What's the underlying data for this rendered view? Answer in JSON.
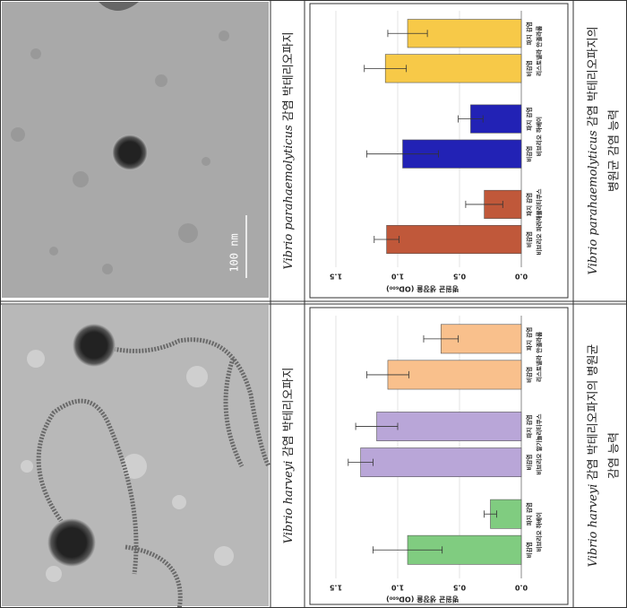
{
  "rows": [
    {
      "image": {
        "scale_label": "100 nm"
      },
      "caption": {
        "species": "Vibrio parahaemolyticus",
        "text": " 감염 박테리오파지"
      },
      "chart": {
        "type": "bar",
        "axis_label": "병원균 생장율 (OD₆₀₀)",
        "xlim": [
          0,
          1.6
        ],
        "xticks": [
          {
            "value": 0,
            "label": "0.0"
          },
          0.5,
          {
            "value": 1,
            "label": "1.0"
          },
          1.5
        ],
        "grid": true,
        "categories": [
          "파지 감염",
          "비감염"
        ],
        "groups": [
          {
            "name": "리스토넬라 안귈라룸",
            "color": "#f7c948",
            "values": [
              0.92,
              1.1
            ],
            "errors": [
              0.16,
              0.17
            ]
          },
          {
            "name": "비브리오 하베이",
            "color": "#2222b5",
            "values": [
              0.41,
              0.96
            ],
            "errors": [
              0.1,
              0.29
            ]
          },
          {
            "name": "비브리오 파라해몰리티쿠스",
            "color": "#c0583a",
            "values": [
              0.3,
              1.09
            ],
            "errors": [
              0.15,
              0.1
            ]
          }
        ]
      },
      "description": {
        "species": "Vibrio parahaemolyticus",
        "line1": " 감염 박테리오파지의",
        "line2": "병원균 감염 능력"
      }
    },
    {
      "image": {},
      "caption": {
        "species": "Vibrio harveyi",
        "text": " 감염 박테리오파지"
      },
      "chart": {
        "type": "bar",
        "axis_label": "병원균 생장율 (OD₆₀₀)",
        "xlim": [
          0,
          1.6
        ],
        "xticks": [
          {
            "value": 0,
            "label": "0.0"
          },
          0.5,
          {
            "value": 1,
            "label": "1.0"
          },
          1.5
        ],
        "grid": true,
        "categories": [
          "파지 감염",
          "비감염"
        ],
        "groups": [
          {
            "name": "리스토넬라 안귈라룸",
            "color": "#f9c08c",
            "values": [
              0.65,
              1.08
            ],
            "errors": [
              0.14,
              0.17
            ]
          },
          {
            "name": "비브리오 알기놀리티쿠스",
            "color": "#b9a6d8",
            "values": [
              1.17,
              1.3
            ],
            "errors": [
              0.17,
              0.1
            ]
          },
          {
            "name": "비브리오 하베이",
            "color": "#80cc80",
            "values": [
              0.25,
              0.92
            ],
            "errors": [
              0.05,
              0.28
            ]
          }
        ]
      },
      "description": {
        "species": "Vibrio harveyi",
        "line1": " 감염 박테리오파지의 병원균",
        "line2": "감염 능력"
      }
    }
  ]
}
